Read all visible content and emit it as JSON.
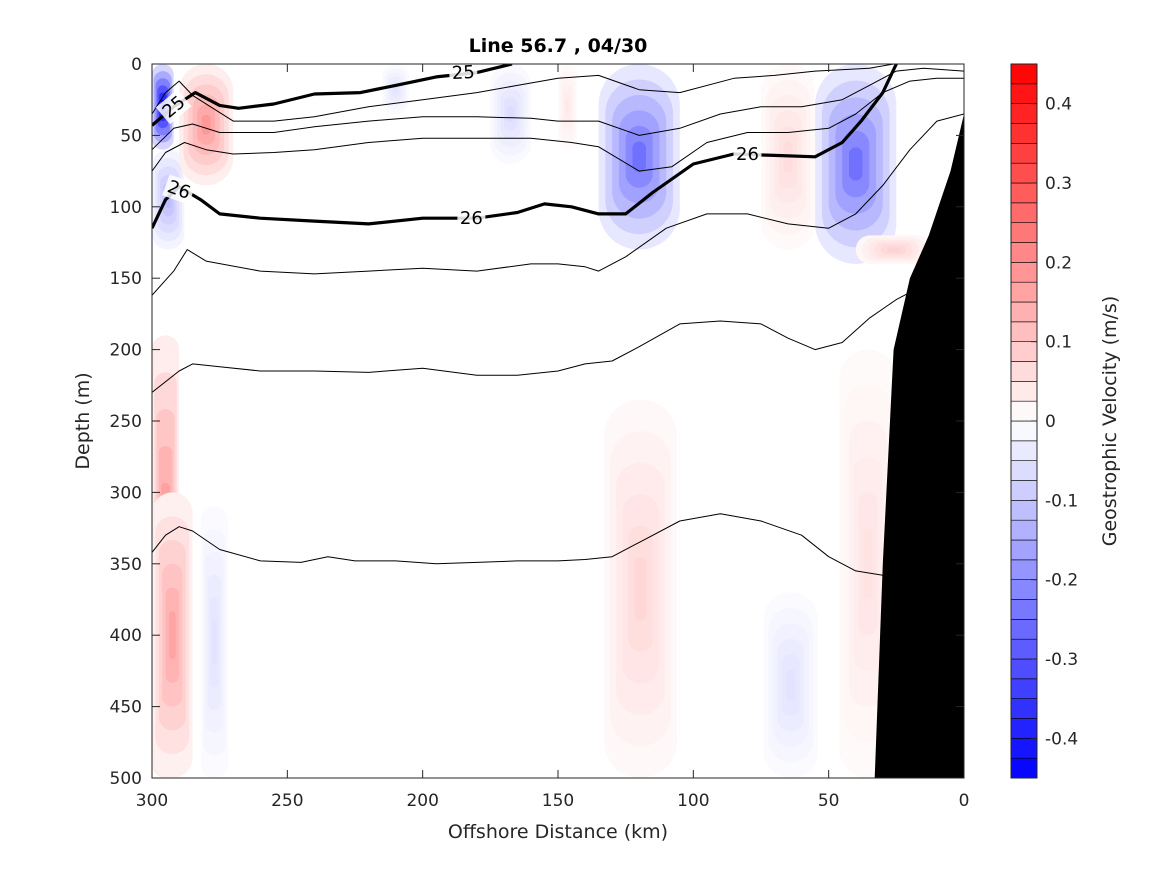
{
  "chart_data": {
    "type": "heatmap",
    "title": "Line 56.7 , 04/30",
    "xlabel": "Offshore Distance (km)",
    "ylabel": "Depth (m)",
    "xlim": [
      300,
      0
    ],
    "ylim": [
      0,
      500
    ],
    "x_reversed": true,
    "y_reversed": true,
    "x_ticks": [
      "300",
      "250",
      "200",
      "150",
      "100",
      "50",
      "0"
    ],
    "y_ticks": [
      "0",
      "50",
      "100",
      "150",
      "200",
      "250",
      "300",
      "350",
      "400",
      "450",
      "500"
    ],
    "colorbar": {
      "label": "Geostrophic Velocity (m/s)",
      "range": [
        -0.45,
        0.45
      ],
      "step": 0.025,
      "ticks": [
        "0.4",
        "0.3",
        "0.2",
        "0.1",
        "0",
        "-0.1",
        "-0.2",
        "-0.3",
        "-0.4"
      ],
      "colors": {
        "negative": "#0000ff",
        "zero": "#ffffff",
        "positive": "#ff0000"
      }
    },
    "velocity_features": [
      {
        "sign": "negative",
        "x_range": [
          300,
          292
        ],
        "depth_range": [
          0,
          60
        ],
        "peak": -0.45
      },
      {
        "sign": "negative",
        "x_range": [
          300,
          288
        ],
        "depth_range": [
          60,
          130
        ],
        "peak": -0.12
      },
      {
        "sign": "positive",
        "x_range": [
          290,
          270
        ],
        "depth_range": [
          0,
          85
        ],
        "peak": 0.18
      },
      {
        "sign": "negative",
        "x_range": [
          215,
          205
        ],
        "depth_range": [
          0,
          35
        ],
        "peak": -0.05
      },
      {
        "sign": "negative",
        "x_range": [
          175,
          160
        ],
        "depth_range": [
          0,
          70
        ],
        "peak": -0.06
      },
      {
        "sign": "positive",
        "x_range": [
          150,
          143
        ],
        "depth_range": [
          0,
          60
        ],
        "peak": 0.04
      },
      {
        "sign": "negative",
        "x_range": [
          135,
          105
        ],
        "depth_range": [
          0,
          130
        ],
        "peak": -0.25
      },
      {
        "sign": "positive",
        "x_range": [
          75,
          55
        ],
        "depth_range": [
          0,
          130
        ],
        "peak": 0.06
      },
      {
        "sign": "negative",
        "x_range": [
          55,
          25
        ],
        "depth_range": [
          0,
          140
        ],
        "peak": -0.25
      },
      {
        "sign": "positive",
        "x_range": [
          40,
          12
        ],
        "depth_range": [
          120,
          140
        ],
        "peak": 0.08
      },
      {
        "sign": "positive",
        "x_range": [
          300,
          290
        ],
        "depth_range": [
          190,
          500
        ],
        "peak": 0.2
      },
      {
        "sign": "positive",
        "x_range": [
          300,
          285
        ],
        "depth_range": [
          300,
          500
        ],
        "peak": 0.16
      },
      {
        "sign": "negative",
        "x_range": [
          282,
          272
        ],
        "depth_range": [
          310,
          500
        ],
        "peak": -0.05
      },
      {
        "sign": "positive",
        "x_range": [
          133,
          106
        ],
        "depth_range": [
          235,
          500
        ],
        "peak": 0.07
      },
      {
        "sign": "negative",
        "x_range": [
          74,
          54
        ],
        "depth_range": [
          370,
          500
        ],
        "peak": -0.05
      },
      {
        "sign": "positive",
        "x_range": [
          46,
          25
        ],
        "depth_range": [
          200,
          500
        ],
        "peak": 0.05
      }
    ],
    "density_contours": [
      {
        "label": "25",
        "bold": true,
        "points": [
          [
            300,
            43
          ],
          [
            292,
            30
          ],
          [
            284,
            20
          ],
          [
            275,
            29
          ],
          [
            268,
            31
          ],
          [
            255,
            28
          ],
          [
            240,
            21
          ],
          [
            223,
            20
          ],
          [
            210,
            15
          ],
          [
            195,
            9
          ],
          [
            180,
            6
          ],
          [
            167,
            0
          ]
        ]
      },
      {
        "level": 25.25,
        "bold": false,
        "points": [
          [
            300,
            35
          ],
          [
            295,
            20
          ],
          [
            290,
            12
          ],
          [
            285,
            22
          ],
          [
            270,
            40
          ],
          [
            255,
            40
          ],
          [
            240,
            37
          ],
          [
            220,
            30
          ],
          [
            200,
            25
          ],
          [
            180,
            20
          ],
          [
            165,
            15
          ],
          [
            150,
            10
          ],
          [
            135,
            8
          ],
          [
            120,
            18
          ],
          [
            105,
            20
          ],
          [
            85,
            10
          ],
          [
            70,
            8
          ],
          [
            55,
            5
          ],
          [
            35,
            3
          ],
          [
            26,
            0
          ]
        ]
      },
      {
        "level": 25.5,
        "bold": false,
        "points": [
          [
            300,
            60
          ],
          [
            292,
            45
          ],
          [
            285,
            42
          ],
          [
            275,
            48
          ],
          [
            265,
            48
          ],
          [
            255,
            48
          ],
          [
            240,
            44
          ],
          [
            220,
            40
          ],
          [
            200,
            37
          ],
          [
            180,
            37
          ],
          [
            160,
            38
          ],
          [
            150,
            40
          ],
          [
            135,
            40
          ],
          [
            120,
            50
          ],
          [
            105,
            45
          ],
          [
            90,
            35
          ],
          [
            75,
            30
          ],
          [
            60,
            30
          ],
          [
            45,
            25
          ],
          [
            35,
            15
          ],
          [
            25,
            5
          ],
          [
            15,
            3
          ],
          [
            0,
            5
          ]
        ]
      },
      {
        "level": 25.75,
        "bold": false,
        "points": [
          [
            300,
            75
          ],
          [
            295,
            62
          ],
          [
            288,
            55
          ],
          [
            280,
            60
          ],
          [
            270,
            63
          ],
          [
            255,
            62
          ],
          [
            240,
            60
          ],
          [
            220,
            55
          ],
          [
            200,
            52
          ],
          [
            180,
            52
          ],
          [
            160,
            52
          ],
          [
            145,
            55
          ],
          [
            135,
            58
          ],
          [
            120,
            75
          ],
          [
            108,
            72
          ],
          [
            95,
            55
          ],
          [
            80,
            48
          ],
          [
            65,
            48
          ],
          [
            50,
            45
          ],
          [
            40,
            35
          ],
          [
            30,
            20
          ],
          [
            20,
            12
          ],
          [
            10,
            10
          ],
          [
            0,
            10
          ]
        ]
      },
      {
        "label": "26",
        "bold": true,
        "points": [
          [
            300,
            115
          ],
          [
            295,
            95
          ],
          [
            290,
            86
          ],
          [
            282,
            95
          ],
          [
            275,
            105
          ],
          [
            260,
            108
          ],
          [
            240,
            110
          ],
          [
            220,
            112
          ],
          [
            200,
            108
          ],
          [
            180,
            108
          ],
          [
            165,
            104
          ],
          [
            155,
            98
          ],
          [
            145,
            100
          ],
          [
            135,
            105
          ],
          [
            125,
            105
          ],
          [
            115,
            90
          ],
          [
            100,
            70
          ],
          [
            85,
            63
          ],
          [
            70,
            64
          ],
          [
            55,
            65
          ],
          [
            45,
            55
          ],
          [
            38,
            40
          ],
          [
            30,
            20
          ],
          [
            25,
            0
          ]
        ]
      },
      {
        "level": 26.25,
        "bold": false,
        "points": [
          [
            300,
            162
          ],
          [
            292,
            145
          ],
          [
            287,
            130
          ],
          [
            280,
            138
          ],
          [
            260,
            145
          ],
          [
            240,
            147
          ],
          [
            220,
            145
          ],
          [
            200,
            143
          ],
          [
            180,
            145
          ],
          [
            160,
            140
          ],
          [
            150,
            140
          ],
          [
            140,
            142
          ],
          [
            135,
            145
          ],
          [
            125,
            135
          ],
          [
            110,
            115
          ],
          [
            95,
            105
          ],
          [
            80,
            105
          ],
          [
            65,
            112
          ],
          [
            50,
            115
          ],
          [
            40,
            105
          ],
          [
            30,
            85
          ],
          [
            20,
            60
          ],
          [
            10,
            40
          ],
          [
            0,
            35
          ]
        ]
      },
      {
        "level": 26.5,
        "bold": false,
        "points": [
          [
            300,
            230
          ],
          [
            290,
            215
          ],
          [
            285,
            210
          ],
          [
            275,
            212
          ],
          [
            260,
            215
          ],
          [
            240,
            215
          ],
          [
            220,
            216
          ],
          [
            200,
            213
          ],
          [
            180,
            218
          ],
          [
            165,
            218
          ],
          [
            150,
            215
          ],
          [
            140,
            210
          ],
          [
            130,
            208
          ],
          [
            120,
            198
          ],
          [
            105,
            182
          ],
          [
            90,
            180
          ],
          [
            75,
            182
          ],
          [
            65,
            192
          ],
          [
            55,
            200
          ],
          [
            45,
            195
          ],
          [
            35,
            178
          ],
          [
            25,
            165
          ],
          [
            15,
            155
          ],
          [
            5,
            150
          ]
        ]
      },
      {
        "level": 26.75,
        "bold": false,
        "points": [
          [
            300,
            342
          ],
          [
            295,
            330
          ],
          [
            290,
            324
          ],
          [
            285,
            327
          ],
          [
            275,
            340
          ],
          [
            260,
            348
          ],
          [
            245,
            349
          ],
          [
            235,
            345
          ],
          [
            225,
            348
          ],
          [
            210,
            348
          ],
          [
            195,
            350
          ],
          [
            180,
            349
          ],
          [
            165,
            348
          ],
          [
            150,
            348
          ],
          [
            140,
            347
          ],
          [
            130,
            345
          ],
          [
            120,
            335
          ],
          [
            105,
            320
          ],
          [
            90,
            315
          ],
          [
            75,
            320
          ],
          [
            60,
            330
          ],
          [
            50,
            345
          ],
          [
            40,
            355
          ],
          [
            30,
            358
          ]
        ]
      }
    ],
    "contour_labels": [
      {
        "text": "25",
        "x": 292,
        "depth": 30,
        "angle": -40
      },
      {
        "text": "25",
        "x": 185,
        "depth": 6,
        "angle": -3
      },
      {
        "text": "26",
        "x": 290,
        "depth": 88,
        "angle": 20
      },
      {
        "text": "26",
        "x": 182,
        "depth": 108,
        "angle": 0
      },
      {
        "text": "26",
        "x": 80,
        "depth": 63,
        "angle": 0
      }
    ],
    "bathymetry": [
      [
        33,
        500
      ],
      [
        30,
        350
      ],
      [
        26,
        200
      ],
      [
        20,
        150
      ],
      [
        13,
        120
      ],
      [
        5,
        75
      ],
      [
        0,
        35
      ]
    ]
  }
}
